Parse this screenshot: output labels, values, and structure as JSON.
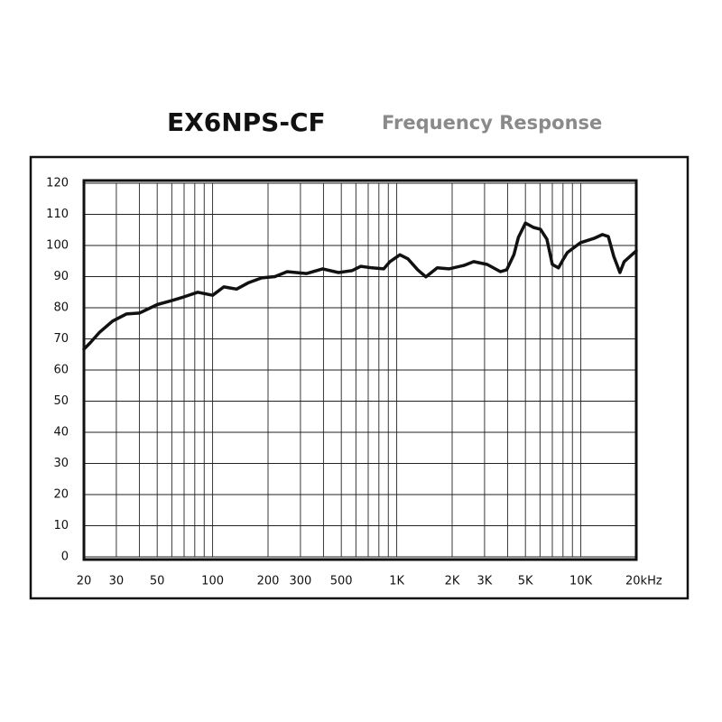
{
  "chart_data": {
    "type": "line",
    "title": "EX6NPS-CF",
    "subtitle": "Frequency Response",
    "x_log_scale": true,
    "xlim": [
      20,
      20000
    ],
    "ylim": [
      0,
      120
    ],
    "xticks": [
      20,
      30,
      50,
      100,
      200,
      300,
      500,
      {
        "value": 1000,
        "label": "1K"
      },
      {
        "value": 2000,
        "label": "2K"
      },
      {
        "value": 3000,
        "label": "3K"
      },
      {
        "value": 5000,
        "label": "5K"
      },
      {
        "value": 10000,
        "label": "10K"
      },
      {
        "value": 20000,
        "label": "20kHz"
      }
    ],
    "x_minor_ticks": [
      40,
      60,
      70,
      80,
      90,
      400,
      600,
      700,
      800,
      900,
      4000,
      6000,
      7000,
      8000,
      9000
    ],
    "yticks": [
      0,
      10,
      20,
      30,
      40,
      50,
      60,
      70,
      80,
      90,
      100,
      110,
      120
    ],
    "grid": true,
    "series": [
      {
        "color": "#111111",
        "x": [
          20,
          21.6,
          24.2,
          28.6,
          34,
          40,
          50,
          60,
          70,
          83,
          100,
          115,
          135,
          156,
          185,
          218,
          254,
          324,
          396,
          483,
          571,
          638,
          734,
          850,
          919,
          1040,
          1150,
          1300,
          1440,
          1660,
          1920,
          2320,
          2620,
          3100,
          3660,
          3960,
          4330,
          4580,
          5000,
          5530,
          6040,
          6540,
          7000,
          7560,
          8000,
          8440,
          9960,
          11800,
          13100,
          14100,
          15100,
          16300,
          17200,
          20000
        ],
        "values": [
          66.7,
          68.7,
          72,
          75.7,
          78,
          78.3,
          81,
          82.3,
          83.5,
          85,
          84,
          86.7,
          86,
          88,
          89.6,
          90,
          91.6,
          91,
          92.5,
          91.3,
          91.9,
          93.3,
          92.8,
          92.5,
          94.8,
          97,
          95.7,
          92.2,
          89.9,
          92.8,
          92.5,
          93.6,
          94.8,
          93.9,
          91.6,
          92.2,
          97,
          102.6,
          107.2,
          105.8,
          105.2,
          102,
          93.9,
          92.8,
          95.4,
          97.7,
          100.9,
          102.3,
          103.5,
          102.9,
          96.5,
          91.3,
          94.8,
          98.3
        ]
      }
    ]
  }
}
